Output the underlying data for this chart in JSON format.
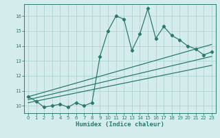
{
  "xlabel": "Humidex (Indice chaleur)",
  "bg_color": "#d4eceb",
  "grid_color": "#b0d4d2",
  "line_color": "#2a7a70",
  "xlim": [
    -0.5,
    23.5
  ],
  "ylim": [
    9.5,
    16.8
  ],
  "yticks": [
    10,
    11,
    12,
    13,
    14,
    15,
    16
  ],
  "xticks": [
    0,
    1,
    2,
    3,
    4,
    5,
    6,
    7,
    8,
    9,
    10,
    11,
    12,
    13,
    14,
    15,
    16,
    17,
    18,
    19,
    20,
    21,
    22,
    23
  ],
  "main_series_x": [
    0,
    1,
    2,
    3,
    4,
    5,
    6,
    7,
    8,
    9,
    10,
    11,
    12,
    13,
    14,
    15,
    16,
    17,
    18,
    19,
    20,
    21,
    22,
    23
  ],
  "main_series_y": [
    10.6,
    10.3,
    9.9,
    10.0,
    10.1,
    9.9,
    10.2,
    10.0,
    10.2,
    13.3,
    15.0,
    16.0,
    15.8,
    13.7,
    14.8,
    16.5,
    14.5,
    15.3,
    14.7,
    14.4,
    14.0,
    13.8,
    13.4,
    13.6
  ],
  "line1_x": [
    0,
    23
  ],
  "line1_y": [
    10.6,
    14.1
  ],
  "line2_x": [
    0,
    23
  ],
  "line2_y": [
    10.4,
    13.3
  ],
  "line3_x": [
    0,
    23
  ],
  "line3_y": [
    10.2,
    12.7
  ],
  "tick_fontsize": 5.0,
  "xlabel_fontsize": 6.5
}
